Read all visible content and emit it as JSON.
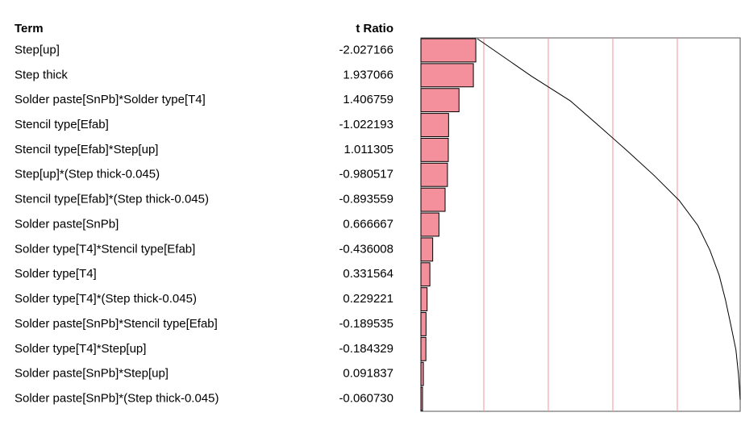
{
  "chart_data": {
    "type": "pareto",
    "column_headers": [
      "Term",
      "t Ratio"
    ],
    "categories": [
      "Step[up]",
      "Step thick",
      "Solder paste[SnPb]*Solder type[T4]",
      "Stencil type[Efab]",
      "Stencil type[Efab]*Step[up]",
      "Step[up]*(Step thick-0.045)",
      "Stencil type[Efab]*(Step thick-0.045)",
      "Solder paste[SnPb]",
      "Solder type[T4]*Stencil type[Efab]",
      "Solder type[T4]",
      "Solder type[T4]*(Step thick-0.045)",
      "Solder paste[SnPb]*Stencil type[Efab]",
      "Solder type[T4]*Step[up]",
      "Solder paste[SnPb]*Step[up]",
      "Solder paste[SnPb]*(Step thick-0.045)"
    ],
    "values": [
      -2.027166,
      1.937066,
      1.406759,
      -1.022193,
      1.011305,
      -0.980517,
      -0.893559,
      0.666667,
      -0.436008,
      0.331564,
      0.229221,
      -0.189535,
      -0.184329,
      0.091837,
      -0.06073
    ],
    "value_labels": [
      "-2.027166",
      "1.937066",
      "1.406759",
      "-1.022193",
      "1.011305",
      "-0.980517",
      "-0.893559",
      "0.666667",
      "-0.436008",
      "0.331564",
      "0.229221",
      "-0.189535",
      "-0.184329",
      "0.091837",
      "-0.060730"
    ],
    "color": "#f4909c"
  }
}
